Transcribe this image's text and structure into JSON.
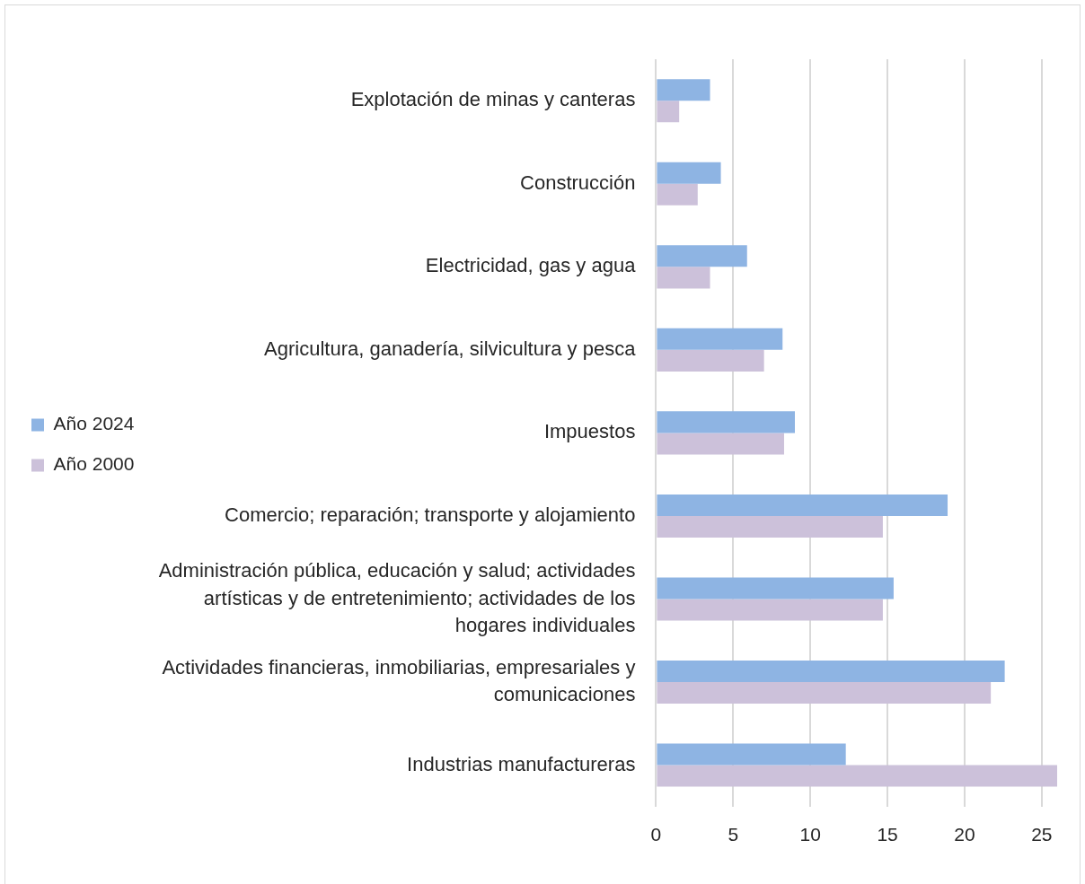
{
  "chart_data": {
    "type": "bar",
    "orientation": "horizontal",
    "categories": [
      "Explotación de minas y canteras",
      "Construcción",
      "Electricidad, gas y agua",
      "Agricultura, ganadería, silvicultura y pesca",
      "Impuestos",
      "Comercio; reparación; transporte y alojamiento",
      "Administración pública, educación y salud; actividades artísticas y de entretenimiento; actividades de los hogares individuales",
      "Actividades financieras, inmobiliarias, empresariales y comunicaciones",
      "Industrias manufactureras"
    ],
    "series": [
      {
        "name": "Año 2024",
        "color": "#8eb4e3",
        "values": [
          3.5,
          4.2,
          5.9,
          8.2,
          9.0,
          18.9,
          15.4,
          22.6,
          12.3
        ]
      },
      {
        "name": "Año 2000",
        "color": "#ccc1da",
        "values": [
          1.5,
          2.7,
          3.5,
          7.0,
          8.3,
          14.7,
          14.7,
          21.7,
          26.0
        ]
      }
    ],
    "xlim": [
      0,
      26
    ],
    "xticks": [
      0,
      5,
      10,
      15,
      20,
      25
    ],
    "grid": "x",
    "legend": "left"
  }
}
